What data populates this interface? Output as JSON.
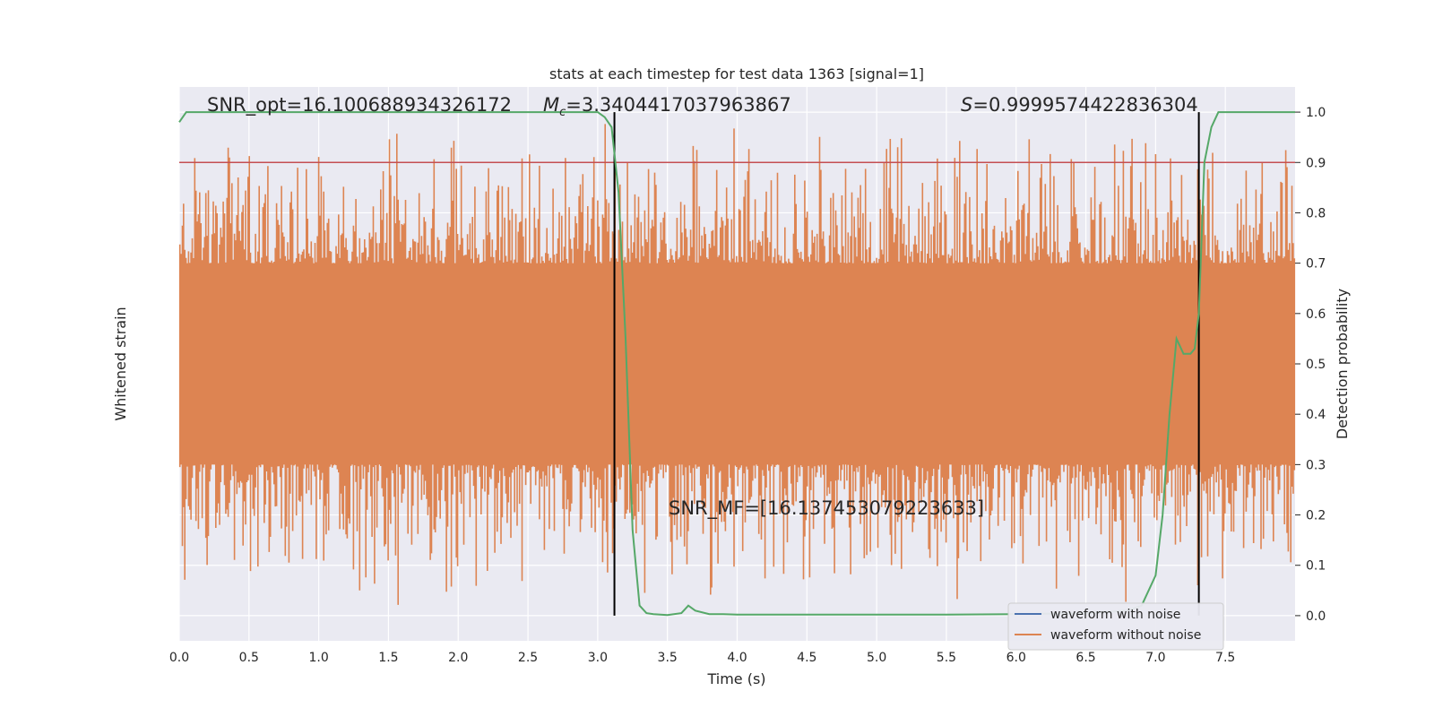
{
  "chart_data": {
    "type": "line",
    "title": "stats at each timestep for test data 1363 [signal=1]",
    "xlabel": "Time (s)",
    "ylabel_left": "Whitened strain",
    "ylabel_right": "Detection probability",
    "xlim": [
      0.0,
      8.0
    ],
    "y_right_lim": [
      -0.05,
      1.05
    ],
    "x_ticks": [
      "0.0",
      "0.5",
      "1.0",
      "1.5",
      "2.0",
      "2.5",
      "3.0",
      "3.5",
      "4.0",
      "4.5",
      "5.0",
      "5.5",
      "6.0",
      "6.5",
      "7.0",
      "7.5"
    ],
    "y_right_ticks": [
      "0.0",
      "0.1",
      "0.2",
      "0.3",
      "0.4",
      "0.5",
      "0.6",
      "0.7",
      "0.8",
      "0.9",
      "1.0"
    ],
    "grid": true,
    "legend_placement": "lower-right",
    "annotations": {
      "snr_opt": "SNR_opt=16.100688934326172",
      "mc_symbol": "M",
      "mc_sub": "c",
      "mc_value": "=3.3404417037963867",
      "s_symbol": "S",
      "s_value": "=0.9999574422836304",
      "snr_mf": "SNR_MF=[16.137453079223633]"
    },
    "threshold": 0.9,
    "vertical_lines_x": [
      3.12,
      7.31
    ],
    "series": [
      {
        "name": "waveform with noise",
        "color": "#4c72b0",
        "values": []
      },
      {
        "name": "waveform without noise",
        "color": "#dd8452",
        "noise_band_right_axis": [
          0.3,
          0.7
        ],
        "spike_range_right_axis": [
          0.0,
          1.0
        ]
      },
      {
        "name": "",
        "color": "#55a868",
        "x": [
          0.0,
          0.05,
          0.2,
          0.5,
          1.0,
          1.5,
          2.0,
          2.5,
          2.9,
          3.0,
          3.05,
          3.1,
          3.15,
          3.2,
          3.25,
          3.3,
          3.35,
          3.4,
          3.45,
          3.5,
          3.6,
          3.65,
          3.7,
          3.8,
          3.9,
          4.0,
          4.1,
          4.5,
          5.0,
          5.5,
          6.0,
          6.5,
          6.8,
          6.9,
          7.0,
          7.05,
          7.1,
          7.15,
          7.2,
          7.25,
          7.28,
          7.31,
          7.33,
          7.35,
          7.4,
          7.45,
          7.5,
          7.6,
          7.7,
          8.0
        ],
        "values": [
          0.98,
          1.0,
          1.0,
          1.0,
          1.0,
          1.0,
          1.0,
          1.0,
          1.0,
          1.0,
          0.99,
          0.97,
          0.84,
          0.55,
          0.17,
          0.02,
          0.005,
          0.003,
          0.002,
          0.001,
          0.005,
          0.02,
          0.01,
          0.003,
          0.003,
          0.002,
          0.002,
          0.002,
          0.002,
          0.002,
          0.003,
          0.005,
          0.01,
          0.02,
          0.08,
          0.2,
          0.4,
          0.55,
          0.52,
          0.52,
          0.53,
          0.6,
          0.75,
          0.9,
          0.97,
          1.0,
          1.0,
          1.0,
          1.0,
          1.0
        ]
      }
    ],
    "threshold_color": "#c44e52",
    "vline_color": "#000000"
  }
}
